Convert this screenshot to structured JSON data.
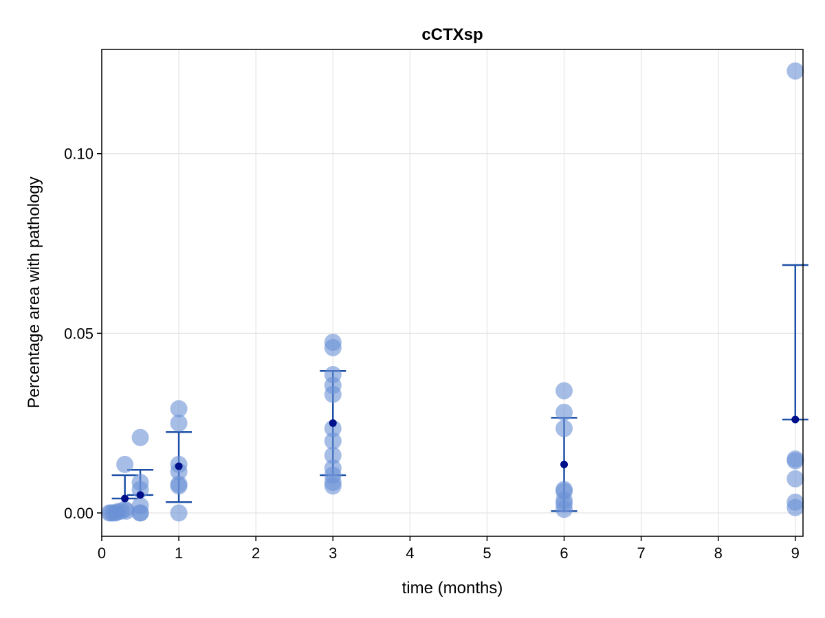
{
  "chart_data": {
    "type": "scatter",
    "title": "cCTXsp",
    "xlabel": "time (months)",
    "ylabel": "Percentage area with pathology",
    "xlim": [
      0,
      9.1
    ],
    "ylim": [
      -0.0065,
      0.129
    ],
    "xticks": [
      0,
      1,
      2,
      3,
      4,
      5,
      6,
      7,
      8,
      9
    ],
    "yticks": [
      0.0,
      0.05,
      0.1
    ],
    "ytick_labels": [
      "0.00",
      "0.05",
      "0.10"
    ],
    "grid": true,
    "colors": {
      "points": "#6b91d6",
      "error_bars": "#1c4fa6",
      "means": "#00108a",
      "grid": "#e3e3e3",
      "frame": "#000000"
    },
    "points": [
      {
        "x": 0.1,
        "y": 0.0
      },
      {
        "x": 0.12,
        "y": 0.0
      },
      {
        "x": 0.15,
        "y": 0.0
      },
      {
        "x": 0.18,
        "y": 0.0
      },
      {
        "x": 0.2,
        "y": 0.0003
      },
      {
        "x": 0.25,
        "y": 0.0005
      },
      {
        "x": 0.3,
        "y": 0.0135
      },
      {
        "x": 0.3,
        "y": 0.001
      },
      {
        "x": 0.32,
        "y": 0.0005
      },
      {
        "x": 0.5,
        "y": 0.021
      },
      {
        "x": 0.5,
        "y": 0.0085
      },
      {
        "x": 0.5,
        "y": 0.0065
      },
      {
        "x": 0.5,
        "y": 0.002
      },
      {
        "x": 0.5,
        "y": 0.0
      },
      {
        "x": 0.5,
        "y": 0.0
      },
      {
        "x": 1,
        "y": 0.029
      },
      {
        "x": 1,
        "y": 0.025
      },
      {
        "x": 1,
        "y": 0.0135
      },
      {
        "x": 1,
        "y": 0.0115
      },
      {
        "x": 1,
        "y": 0.008
      },
      {
        "x": 1,
        "y": 0.0075
      },
      {
        "x": 1,
        "y": 0.0
      },
      {
        "x": 3,
        "y": 0.0475
      },
      {
        "x": 3,
        "y": 0.046
      },
      {
        "x": 3,
        "y": 0.0385
      },
      {
        "x": 3,
        "y": 0.0355
      },
      {
        "x": 3,
        "y": 0.033
      },
      {
        "x": 3,
        "y": 0.0235
      },
      {
        "x": 3,
        "y": 0.02
      },
      {
        "x": 3,
        "y": 0.016
      },
      {
        "x": 3,
        "y": 0.0125
      },
      {
        "x": 3,
        "y": 0.0105
      },
      {
        "x": 3,
        "y": 0.0085
      },
      {
        "x": 3,
        "y": 0.0075
      },
      {
        "x": 6,
        "y": 0.034
      },
      {
        "x": 6,
        "y": 0.028
      },
      {
        "x": 6,
        "y": 0.0235
      },
      {
        "x": 6,
        "y": 0.0065
      },
      {
        "x": 6,
        "y": 0.006
      },
      {
        "x": 6,
        "y": 0.0035
      },
      {
        "x": 6,
        "y": 0.0025
      },
      {
        "x": 6,
        "y": 0.001
      },
      {
        "x": 9,
        "y": 0.123
      },
      {
        "x": 9,
        "y": 0.015
      },
      {
        "x": 9,
        "y": 0.0145
      },
      {
        "x": 9,
        "y": 0.0095
      },
      {
        "x": 9,
        "y": 0.003
      },
      {
        "x": 9,
        "y": 0.0015
      }
    ],
    "summary": [
      {
        "x": 0.3,
        "mean": 0.004,
        "lower": 0.004,
        "upper": 0.0105
      },
      {
        "x": 0.5,
        "mean": 0.005,
        "lower": 0.005,
        "upper": 0.012
      },
      {
        "x": 1,
        "mean": 0.013,
        "lower": 0.003,
        "upper": 0.0225
      },
      {
        "x": 3,
        "mean": 0.025,
        "lower": 0.0105,
        "upper": 0.0395
      },
      {
        "x": 6,
        "mean": 0.0135,
        "lower": 0.0005,
        "upper": 0.0265
      },
      {
        "x": 9,
        "mean": 0.026,
        "lower": 0.026,
        "upper": 0.069
      }
    ]
  }
}
